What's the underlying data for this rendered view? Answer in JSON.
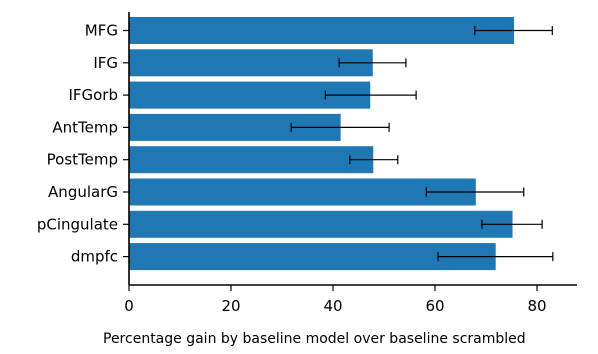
{
  "chart_data": {
    "type": "bar",
    "orientation": "horizontal",
    "categories": [
      "MFG",
      "IFG",
      "IFGorb",
      "AntTemp",
      "PostTemp",
      "AngularG",
      "pCingulate",
      "dmpfc"
    ],
    "values": [
      75.5,
      47.8,
      47.3,
      41.5,
      47.9,
      68.0,
      75.2,
      71.9
    ],
    "error_low": [
      67.8,
      41.2,
      38.5,
      31.8,
      43.3,
      58.3,
      69.2,
      60.6
    ],
    "error_high": [
      83.0,
      54.3,
      56.3,
      51.0,
      52.7,
      77.4,
      81.0,
      83.1
    ],
    "xlabel": "Percentage gain by baseline model over baseline scrambled",
    "ylabel": "",
    "xlim": [
      0,
      86.5
    ],
    "xticks": [
      "0",
      "20",
      "40",
      "60",
      "80"
    ],
    "grid": false,
    "bar_color": "#1f77b4",
    "errorbar_color": "#000000"
  }
}
